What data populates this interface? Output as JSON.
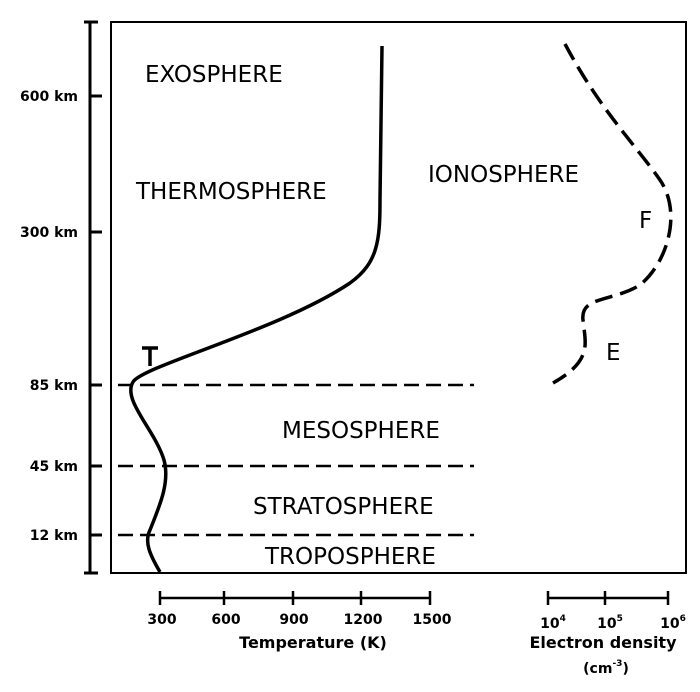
{
  "altitude_ticks": [
    "600 km",
    "300 km",
    "85 km",
    "45 km",
    "12 km"
  ],
  "layers": [
    "EXOSPHERE",
    "THERMOSPHERE",
    "MESOSPHERE",
    "STRATOSPHERE",
    "TROPOSPHERE"
  ],
  "ionosphere": {
    "label": "IONOSPHERE",
    "regions": [
      "F",
      "E"
    ]
  },
  "temperature_axis": {
    "ticks": [
      "300",
      "600",
      "900",
      "1200",
      "1500"
    ],
    "label": "Temperature (K)"
  },
  "density_axis": {
    "ticks": [
      {
        "base": "10",
        "exponent": "4"
      },
      {
        "base": "10",
        "exponent": "5"
      },
      {
        "base": "10",
        "exponent": "6"
      }
    ],
    "label": "Electron density",
    "unit": {
      "open": "(cm",
      "exponent": "-3",
      "close": ")"
    }
  }
}
